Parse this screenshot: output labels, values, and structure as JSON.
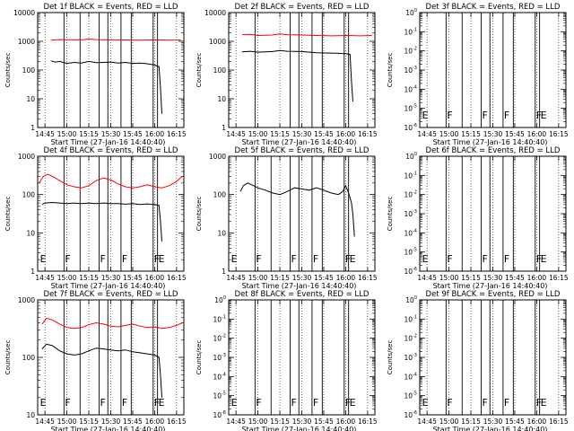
{
  "figure": {
    "xlabel": "Start Time (27-Jan-16 14:40:40)",
    "ylabel": "Counts/sec",
    "time_ticks": [
      "14:45",
      "15:00",
      "15:15",
      "15:30",
      "15:45",
      "16:00",
      "16:15"
    ],
    "colors": {
      "events": "#000000",
      "lld": "#ff0000",
      "axes": "#000000"
    },
    "flag_markers": [
      {
        "label": "E",
        "x": "14:41"
      },
      {
        "label": "F",
        "x": "14:58"
      },
      {
        "label": "F",
        "x": "15:22"
      },
      {
        "label": "F",
        "x": "15:37"
      },
      {
        "label": "F",
        "x": "15:59"
      },
      {
        "label": "E",
        "x": "16:02"
      }
    ]
  },
  "chart_data": [
    {
      "type": "line",
      "title": "Det 1f BLACK = Events, RED = LLD",
      "xlabel": "Start Time (27-Jan-16 14:40:40)",
      "ylabel": "Counts/sec",
      "scale": "log",
      "y_ticks": [
        "1",
        "10",
        "100",
        "1000",
        "10000"
      ],
      "ylim": [
        1,
        10000
      ],
      "xlim": [
        "14:40",
        "16:20"
      ],
      "vertical_lines": [
        "14:58",
        "15:09",
        "15:22",
        "15:28",
        "15:37",
        "15:44",
        "15:59",
        "16:02"
      ],
      "series": [
        {
          "name": "LLD",
          "color": "#ff0000",
          "points": [
            [
              "14:49",
              1100
            ],
            [
              "14:55",
              1150
            ],
            [
              "15:00",
              1130
            ],
            [
              "15:10",
              1120
            ],
            [
              "15:15",
              1200
            ],
            [
              "15:20",
              1150
            ],
            [
              "15:30",
              1120
            ],
            [
              "15:40",
              1110
            ],
            [
              "15:50",
              1100
            ],
            [
              "16:00",
              1120
            ],
            [
              "16:10",
              1100
            ],
            [
              "16:18",
              1110
            ]
          ]
        },
        {
          "name": "Events",
          "color": "#000000",
          "points": [
            [
              "14:49",
              210
            ],
            [
              "14:52",
              190
            ],
            [
              "14:55",
              200
            ],
            [
              "15:00",
              170
            ],
            [
              "15:05",
              185
            ],
            [
              "15:10",
              175
            ],
            [
              "15:15",
              200
            ],
            [
              "15:20",
              180
            ],
            [
              "15:25",
              185
            ],
            [
              "15:30",
              190
            ],
            [
              "15:35",
              175
            ],
            [
              "15:40",
              185
            ],
            [
              "15:45",
              170
            ],
            [
              "15:50",
              175
            ],
            [
              "15:55",
              165
            ],
            [
              "16:00",
              150
            ],
            [
              "16:03",
              130
            ],
            [
              "16:04",
              25
            ],
            [
              "16:05",
              3
            ]
          ]
        }
      ]
    },
    {
      "type": "line",
      "title": "Det 2f BLACK = Events, RED = LLD",
      "xlabel": "Start Time (27-Jan-16 14:40:40)",
      "ylabel": "Counts/sec",
      "scale": "log",
      "y_ticks": [
        "1",
        "10",
        "100",
        "1000",
        "10000"
      ],
      "ylim": [
        1,
        10000
      ],
      "xlim": [
        "14:40",
        "16:20"
      ],
      "vertical_lines": [
        "14:58",
        "15:22",
        "15:28",
        "15:37",
        "15:44",
        "15:59",
        "16:02"
      ],
      "series": [
        {
          "name": "LLD",
          "color": "#ff0000",
          "points": [
            [
              "14:49",
              1700
            ],
            [
              "14:55",
              1750
            ],
            [
              "15:00",
              1600
            ],
            [
              "15:10",
              1650
            ],
            [
              "15:15",
              1800
            ],
            [
              "15:20",
              1700
            ],
            [
              "15:30",
              1650
            ],
            [
              "15:40",
              1600
            ],
            [
              "15:50",
              1550
            ],
            [
              "16:00",
              1600
            ],
            [
              "16:10",
              1550
            ],
            [
              "16:18",
              1600
            ]
          ]
        },
        {
          "name": "Events",
          "color": "#000000",
          "points": [
            [
              "14:49",
              430
            ],
            [
              "14:55",
              450
            ],
            [
              "15:00",
              420
            ],
            [
              "15:10",
              440
            ],
            [
              "15:15",
              480
            ],
            [
              "15:20",
              450
            ],
            [
              "15:30",
              440
            ],
            [
              "15:40",
              400
            ],
            [
              "15:50",
              390
            ],
            [
              "15:55",
              380
            ],
            [
              "16:00",
              370
            ],
            [
              "16:03",
              350
            ],
            [
              "16:04",
              40
            ],
            [
              "16:05",
              8
            ]
          ]
        }
      ]
    },
    {
      "type": "line",
      "title": "Det 3f BLACK = Events, RED = LLD",
      "xlabel": "Start Time (27-Jan-16 14:40:40)",
      "ylabel": "Counts/sec",
      "scale": "log",
      "y_ticks": [
        "10^0",
        "10^-1",
        "10^-2",
        "10^-3",
        "10^-4",
        "10^-5",
        "10^-6"
      ],
      "ylim": [
        1e-06,
        1
      ],
      "xlim": [
        "14:40",
        "16:20"
      ],
      "vertical_lines": [
        "14:58",
        "15:09",
        "15:22",
        "15:28",
        "15:37",
        "15:44",
        "15:59",
        "16:02"
      ],
      "flags": true,
      "series": []
    },
    {
      "type": "line",
      "title": "Det 4f BLACK = Events, RED = LLD",
      "xlabel": "Start Time (27-Jan-16 14:40:40)",
      "ylabel": "Counts/sec",
      "scale": "log",
      "y_ticks": [
        "1",
        "10",
        "100",
        "1000"
      ],
      "ylim": [
        1,
        1000
      ],
      "xlim": [
        "14:40",
        "16:20"
      ],
      "vertical_lines": [
        "14:58",
        "15:09",
        "15:22",
        "15:28",
        "15:37",
        "15:44",
        "15:59",
        "16:02"
      ],
      "flags": true,
      "series": [
        {
          "name": "LLD",
          "color": "#ff0000",
          "points": [
            [
              "14:41",
              200
            ],
            [
              "14:44",
              300
            ],
            [
              "14:47",
              340
            ],
            [
              "14:50",
              300
            ],
            [
              "14:55",
              230
            ],
            [
              "15:00",
              180
            ],
            [
              "15:05",
              160
            ],
            [
              "15:10",
              150
            ],
            [
              "15:15",
              170
            ],
            [
              "15:20",
              230
            ],
            [
              "15:25",
              270
            ],
            [
              "15:30",
              240
            ],
            [
              "15:35",
              190
            ],
            [
              "15:40",
              160
            ],
            [
              "15:45",
              150
            ],
            [
              "15:50",
              160
            ],
            [
              "15:55",
              180
            ],
            [
              "16:00",
              160
            ],
            [
              "16:05",
              150
            ],
            [
              "16:10",
              170
            ],
            [
              "16:15",
              220
            ],
            [
              "16:19",
              300
            ]
          ]
        },
        {
          "name": "Events",
          "color": "#000000",
          "points": [
            [
              "14:43",
              55
            ],
            [
              "14:45",
              60
            ],
            [
              "14:50",
              62
            ],
            [
              "14:55",
              60
            ],
            [
              "15:00",
              58
            ],
            [
              "15:05",
              60
            ],
            [
              "15:10",
              58
            ],
            [
              "15:15",
              60
            ],
            [
              "15:20",
              58
            ],
            [
              "15:25",
              60
            ],
            [
              "15:30",
              58
            ],
            [
              "15:35",
              58
            ],
            [
              "15:40",
              56
            ],
            [
              "15:45",
              58
            ],
            [
              "15:50",
              55
            ],
            [
              "15:55",
              57
            ],
            [
              "16:00",
              55
            ],
            [
              "16:03",
              52
            ],
            [
              "16:04",
              20
            ],
            [
              "16:05",
              6
            ]
          ]
        }
      ]
    },
    {
      "type": "line",
      "title": "Det 5f BLACK = Events, RED = LLD",
      "xlabel": "Start Time (27-Jan-16 14:40:40)",
      "ylabel": "Counts/sec",
      "scale": "log",
      "y_ticks": [
        "1",
        "10",
        "100",
        "1000"
      ],
      "ylim": [
        1,
        1000
      ],
      "xlim": [
        "14:40",
        "16:20"
      ],
      "vertical_lines": [
        "14:58",
        "15:09",
        "15:22",
        "15:28",
        "15:37",
        "15:44",
        "15:59",
        "16:02"
      ],
      "flags": true,
      "series": [
        {
          "name": "Events",
          "color": "#000000",
          "points": [
            [
              "14:48",
              120
            ],
            [
              "14:50",
              170
            ],
            [
              "14:53",
              200
            ],
            [
              "14:57",
              170
            ],
            [
              "15:00",
              150
            ],
            [
              "15:05",
              130
            ],
            [
              "15:10",
              110
            ],
            [
              "15:15",
              100
            ],
            [
              "15:20",
              120
            ],
            [
              "15:25",
              150
            ],
            [
              "15:30",
              140
            ],
            [
              "15:35",
              130
            ],
            [
              "15:40",
              150
            ],
            [
              "15:45",
              130
            ],
            [
              "15:50",
              110
            ],
            [
              "15:55",
              100
            ],
            [
              "15:58",
              120
            ],
            [
              "16:00",
              170
            ],
            [
              "16:02",
              110
            ],
            [
              "16:04",
              60
            ],
            [
              "16:05",
              30
            ],
            [
              "16:06",
              8
            ]
          ]
        }
      ]
    },
    {
      "type": "line",
      "title": "Det 6f BLACK = Events, RED = LLD",
      "xlabel": "Start Time (27-Jan-16 14:40:40)",
      "ylabel": "Counts/sec",
      "scale": "log",
      "y_ticks": [
        "10^0",
        "10^-1",
        "10^-2",
        "10^-3",
        "10^-4",
        "10^-5",
        "10^-6"
      ],
      "ylim": [
        1e-06,
        1
      ],
      "xlim": [
        "14:40",
        "16:20"
      ],
      "vertical_lines": [
        "14:58",
        "15:09",
        "15:22",
        "15:28",
        "15:37",
        "15:44",
        "15:59",
        "16:02"
      ],
      "flags": true,
      "series": []
    },
    {
      "type": "line",
      "title": "Det 7f BLACK = Events, RED = LLD",
      "xlabel": "Start Time (27-Jan-16 14:40:40)",
      "ylabel": "Counts/sec",
      "scale": "log",
      "y_ticks": [
        "10",
        "100",
        "1000"
      ],
      "ylim": [
        10,
        1000
      ],
      "xlim": [
        "14:40",
        "16:20"
      ],
      "vertical_lines": [
        "14:58",
        "15:09",
        "15:22",
        "15:28",
        "15:37",
        "15:44",
        "15:59",
        "16:02"
      ],
      "flags": true,
      "series": [
        {
          "name": "LLD",
          "color": "#ff0000",
          "points": [
            [
              "14:43",
              380
            ],
            [
              "14:46",
              480
            ],
            [
              "14:50",
              450
            ],
            [
              "14:55",
              380
            ],
            [
              "15:00",
              330
            ],
            [
              "15:05",
              320
            ],
            [
              "15:10",
              330
            ],
            [
              "15:15",
              370
            ],
            [
              "15:20",
              400
            ],
            [
              "15:25",
              380
            ],
            [
              "15:30",
              350
            ],
            [
              "15:35",
              340
            ],
            [
              "15:40",
              360
            ],
            [
              "15:45",
              380
            ],
            [
              "15:50",
              350
            ],
            [
              "15:55",
              330
            ],
            [
              "16:00",
              340
            ],
            [
              "16:05",
              320
            ],
            [
              "16:10",
              330
            ],
            [
              "16:15",
              360
            ],
            [
              "16:19",
              400
            ]
          ]
        },
        {
          "name": "Events",
          "color": "#000000",
          "points": [
            [
              "14:43",
              140
            ],
            [
              "14:46",
              170
            ],
            [
              "14:50",
              160
            ],
            [
              "14:55",
              130
            ],
            [
              "15:00",
              115
            ],
            [
              "15:05",
              110
            ],
            [
              "15:10",
              115
            ],
            [
              "15:15",
              130
            ],
            [
              "15:20",
              145
            ],
            [
              "15:25",
              140
            ],
            [
              "15:30",
              135
            ],
            [
              "15:35",
              130
            ],
            [
              "15:40",
              135
            ],
            [
              "15:45",
              125
            ],
            [
              "15:50",
              120
            ],
            [
              "15:55",
              115
            ],
            [
              "16:00",
              110
            ],
            [
              "16:03",
              100
            ],
            [
              "16:04",
              50
            ],
            [
              "16:05",
              20
            ]
          ]
        }
      ]
    },
    {
      "type": "line",
      "title": "Det 8f BLACK = Events, RED = LLD",
      "xlabel": "Start Time (27-Jan-16 14:40:40)",
      "ylabel": "Counts/sec",
      "scale": "log",
      "y_ticks": [
        "10^0",
        "10^-1",
        "10^-2",
        "10^-3",
        "10^-4",
        "10^-5",
        "10^-6"
      ],
      "ylim": [
        1e-06,
        1
      ],
      "xlim": [
        "14:40",
        "16:20"
      ],
      "vertical_lines": [
        "14:58",
        "15:09",
        "15:22",
        "15:28",
        "15:37",
        "15:44",
        "15:59",
        "16:02"
      ],
      "flags": true,
      "series": []
    },
    {
      "type": "line",
      "title": "Det 9f BLACK = Events, RED = LLD",
      "xlabel": "Start Time (27-Jan-16 14:40:40)",
      "ylabel": "Counts/sec",
      "scale": "log",
      "y_ticks": [
        "10^0",
        "10^-1",
        "10^-2",
        "10^-3",
        "10^-4",
        "10^-5",
        "10^-6"
      ],
      "ylim": [
        1e-06,
        1
      ],
      "xlim": [
        "14:40",
        "16:20"
      ],
      "vertical_lines": [
        "14:58",
        "15:09",
        "15:22",
        "15:28",
        "15:37",
        "15:44",
        "15:59",
        "16:02"
      ],
      "flags": true,
      "series": []
    }
  ]
}
